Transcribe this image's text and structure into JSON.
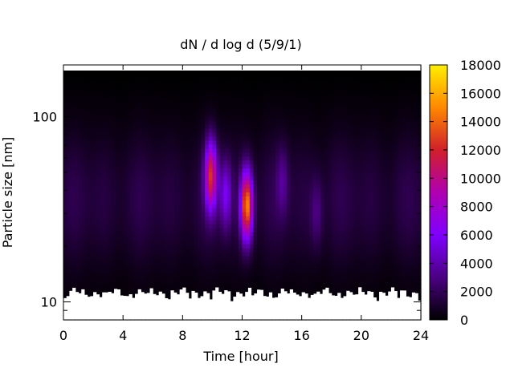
{
  "chart_data": {
    "type": "heatmap",
    "title": "dN / d log d (5/9/1)",
    "xlabel": "Time [hour]",
    "ylabel": "Particle size [nm]",
    "xlim": [
      0,
      24
    ],
    "xticks": [
      0,
      4,
      8,
      12,
      16,
      20,
      24
    ],
    "y_scale": "log",
    "ylim": [
      8,
      190
    ],
    "yticks": [
      10,
      100
    ],
    "colorbar": {
      "range": [
        0,
        18000
      ],
      "ticks": [
        0,
        2000,
        4000,
        6000,
        8000,
        10000,
        12000,
        14000,
        16000,
        18000
      ],
      "colormap": [
        "#000000",
        "#4b0082",
        "#8000ff",
        "#b000b0",
        "#d0202a",
        "#ff8800",
        "#ffee00"
      ]
    },
    "grid": false,
    "no_data_color": "#ffffff",
    "background_level": 1800,
    "features": [
      {
        "time": 9.9,
        "size": 48,
        "peak": 11000
      },
      {
        "time": 10.9,
        "size": 38,
        "peak": 4500
      },
      {
        "time": 12.3,
        "size": 33,
        "peak": 14000
      },
      {
        "time": 14.7,
        "size": 45,
        "peak": 2200
      },
      {
        "time": 17.0,
        "size": 30,
        "peak": 2000
      }
    ]
  }
}
